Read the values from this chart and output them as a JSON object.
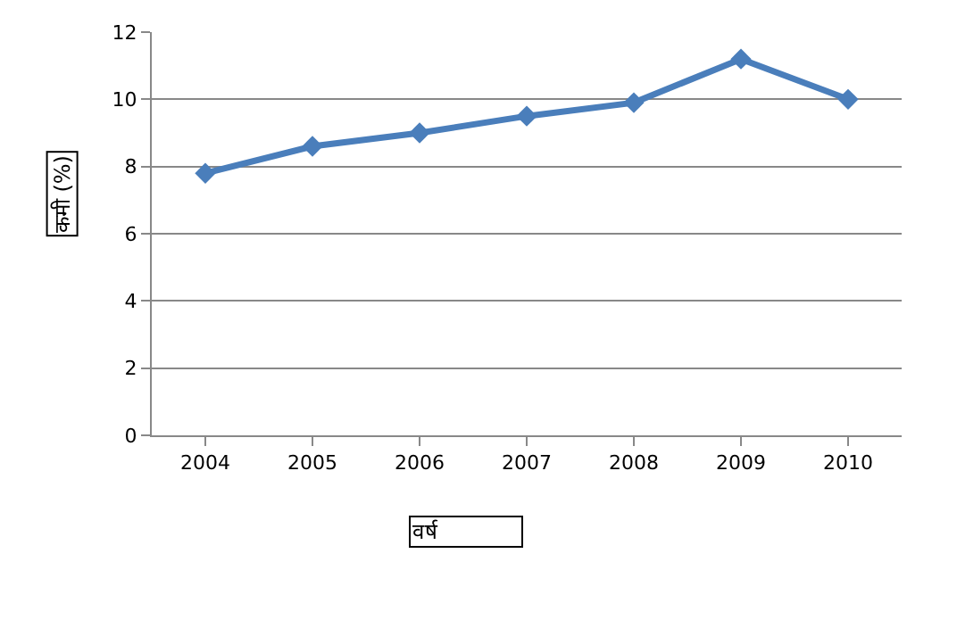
{
  "chart_data": {
    "type": "line",
    "xlabel": "वर्ष",
    "ylabel": "कमी (%)",
    "categories": [
      "2004",
      "2005",
      "2006",
      "2007",
      "2008",
      "2009",
      "2010"
    ],
    "series": [
      {
        "color": "#4a7ebb",
        "values": [
          7.8,
          8.6,
          9.0,
          9.5,
          9.9,
          11.2,
          10.0
        ]
      }
    ],
    "ylim": [
      0,
      12
    ],
    "yticks": [
      0,
      2,
      4,
      6,
      8,
      10,
      12
    ],
    "grid": "y",
    "legend": false,
    "marker": "diamond",
    "line_style": "solid"
  }
}
